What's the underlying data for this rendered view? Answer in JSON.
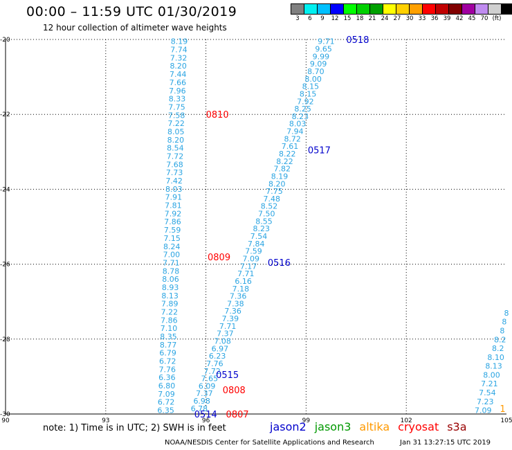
{
  "header": {
    "title": "00:00 – 11:59 UTC 01/30/2019",
    "subtitle": "12 hour collection of altimeter wave heights"
  },
  "legend": {
    "colors": [
      "#808080",
      "#00f0f0",
      "#00c0ff",
      "#0000ff",
      "#00ff00",
      "#00d000",
      "#00a000",
      "#ffff00",
      "#ffd000",
      "#ffa000",
      "#ff0000",
      "#c00000",
      "#800000",
      "#a000a0",
      "#c08cf0",
      "#d0d0d0",
      "#000000"
    ],
    "labels": [
      "3",
      "6",
      "9",
      "12",
      "15",
      "18",
      "21",
      "24",
      "27",
      "30",
      "33",
      "36",
      "39",
      "42",
      "45",
      "70",
      "(ft)"
    ]
  },
  "note": "note: 1) Time is in UTC; 2) SWH is in feet",
  "satellites": [
    {
      "name": "jason2",
      "color": "#0000cc"
    },
    {
      "name": "jason3",
      "color": "#009900"
    },
    {
      "name": "altika",
      "color": "#ff9900"
    },
    {
      "name": "cryosat",
      "color": "#ff0000"
    },
    {
      "name": "s3a",
      "color": "#990000"
    }
  ],
  "footer": {
    "credit": "NOAA/NESDIS Center for Satellite Applications and Research",
    "timestamp": "Jan 31 13:27:15 UTC 2019"
  },
  "chart_data": {
    "type": "scatter",
    "xlim": [
      90,
      105
    ],
    "ylim": [
      -30,
      -20
    ],
    "xticks": [
      90,
      93,
      96,
      99,
      102,
      105
    ],
    "yticks": [
      -30,
      -28,
      -26,
      -24,
      -22,
      -20
    ],
    "grid": true,
    "value_color": "#2aa4e2",
    "tracks": [
      {
        "name": "left-pass",
        "start": [
          95.2,
          -20.05
        ],
        "end": [
          94.8,
          -29.9
        ],
        "values": [
          "8.19",
          "7.74",
          "7.32",
          "8.20",
          "7.44",
          "7.66",
          "7.96",
          "8.33",
          "7.75",
          "7.58",
          "7.22",
          "8.05",
          "8.20",
          "8.54",
          "7.72",
          "7.68",
          "7.73",
          "7.42",
          "8.03",
          "7.91",
          "7.81",
          "7.92",
          "7.86",
          "7.59",
          "7.15",
          "8.24",
          "7.00",
          "7.71",
          "8.78",
          "8.06",
          "8.93",
          "8.13",
          "7.89",
          "7.22",
          "7.86",
          "7.10",
          "8.35",
          "8.77",
          "6.79",
          "6.72",
          "7.76",
          "6.36",
          "6.80",
          "7.09",
          "6.72",
          "6.35"
        ],
        "time_labels": [
          {
            "text": "0810",
            "lon": 96.0,
            "lat": -22.0,
            "color": "#ff0000"
          },
          {
            "text": "0809",
            "lon": 96.05,
            "lat": -25.8,
            "color": "#ff0000"
          },
          {
            "text": "0808",
            "lon": 96.5,
            "lat": -29.35,
            "color": "#ff0000"
          },
          {
            "text": "0807",
            "lon": 96.6,
            "lat": -30.0,
            "color": "#ff0000"
          }
        ]
      },
      {
        "name": "middle-pass",
        "start": [
          99.6,
          -20.05
        ],
        "end": [
          95.8,
          -29.85
        ],
        "values": [
          "9.71",
          "9.65",
          "9.99",
          "9.09",
          "8.70",
          "8.00",
          "8.15",
          "8.15",
          "7.92",
          "8.25",
          "8.23",
          "8.03",
          "7.94",
          "8.72",
          "7.61",
          "8.22",
          "8.22",
          "7.82",
          "8.19",
          "8.20",
          "7.75",
          "7.48",
          "8.52",
          "7.50",
          "8.55",
          "8.23",
          "7.54",
          "7.84",
          "7.59",
          "7.09",
          "7.17",
          "7.71",
          "6.16",
          "7.18",
          "7.36",
          "7.38",
          "7.36",
          "7.39",
          "7.71",
          "7.37",
          "7.08",
          "6.97",
          "6.23",
          "7.76",
          "7.72",
          "7.65",
          "6.09",
          "7.37",
          "6.98",
          "6.78"
        ],
        "time_labels": [
          {
            "text": "0518",
            "lon": 100.2,
            "lat": -20.0,
            "color": "#0000cc"
          },
          {
            "text": "0517",
            "lon": 99.05,
            "lat": -22.95,
            "color": "#0000cc"
          },
          {
            "text": "0516",
            "lon": 97.85,
            "lat": -25.95,
            "color": "#0000cc"
          },
          {
            "text": "0515",
            "lon": 96.3,
            "lat": -28.95,
            "color": "#0000cc"
          },
          {
            "text": "0514",
            "lon": 95.65,
            "lat": -30.0,
            "color": "#0000cc"
          }
        ]
      },
      {
        "name": "right-pass",
        "start": [
          105.0,
          -27.3
        ],
        "end": [
          104.3,
          -29.9
        ],
        "values": [
          "8",
          "8",
          "8",
          "8.2",
          "8.2",
          "8.10",
          "8.13",
          "8.00",
          "7.21",
          "7.54",
          "7.23",
          "7.09"
        ],
        "time_labels": [
          {
            "text": "1",
            "lon": 104.8,
            "lat": -29.85,
            "color": "#ff9900"
          }
        ]
      }
    ]
  }
}
